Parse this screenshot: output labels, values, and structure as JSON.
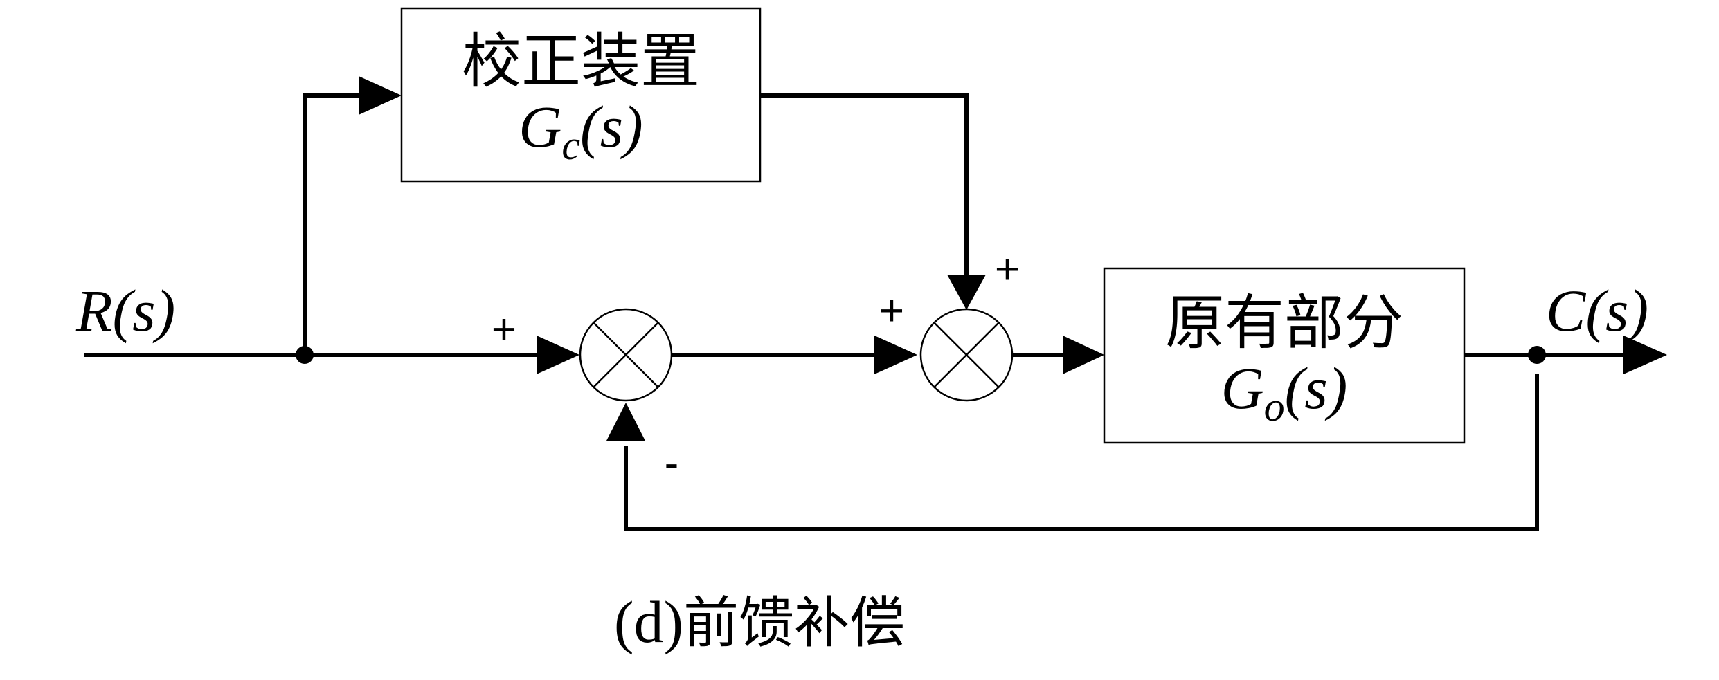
{
  "blocks": {
    "compensator": {
      "title": "校正装置",
      "tf_symbol": "G",
      "tf_subscript": "c",
      "tf_arg": "(s)"
    },
    "plant": {
      "title": "原有部分",
      "tf_symbol": "G",
      "tf_subscript": "o",
      "tf_arg": "(s)"
    }
  },
  "signals": {
    "input": {
      "symbol": "R",
      "arg": "(s)"
    },
    "output": {
      "symbol": "C",
      "arg": "(s)"
    }
  },
  "signs": {
    "sum1_input": "+",
    "sum1_feedback": "-",
    "sum2_input": "+",
    "sum2_feedforward": "+"
  },
  "caption": {
    "label": "(d)",
    "text": "前馈补偿"
  }
}
